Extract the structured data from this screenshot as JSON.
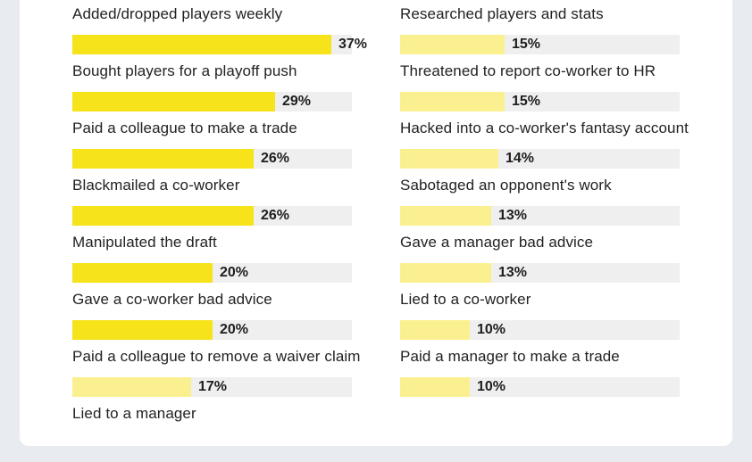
{
  "chart_data": {
    "type": "bar",
    "orientation": "horizontal",
    "value_unit": "%",
    "colors": {
      "fill_top": "#f6e31a",
      "fill_low": "#fbf08f",
      "track": "#efefef",
      "text": "#222222"
    },
    "columns": [
      {
        "items": [
          {
            "label": "Added/dropped players weekly",
            "value": 37,
            "value_label": "37%"
          },
          {
            "label": "Bought players for a playoff push",
            "value": 29,
            "value_label": "29%"
          },
          {
            "label": "Paid a colleague to make a trade",
            "value": 26,
            "value_label": "26%"
          },
          {
            "label": "Blackmailed a co-worker",
            "value": 26,
            "value_label": "26%"
          },
          {
            "label": "Manipulated the draft",
            "value": 20,
            "value_label": "20%"
          },
          {
            "label": "Gave a co-worker bad advice",
            "value": 20,
            "value_label": "20%"
          },
          {
            "label": "Paid a colleague to remove a waiver claim",
            "value": 17,
            "value_label": "17%"
          },
          {
            "label": "Lied to a manager",
            "value": null,
            "value_label": ""
          }
        ]
      },
      {
        "items": [
          {
            "label": "Researched players and stats",
            "value": 15,
            "value_label": "15%"
          },
          {
            "label": "Threatened to report co-worker to HR",
            "value": 15,
            "value_label": "15%"
          },
          {
            "label": "Hacked into a co-worker's fantasy account",
            "value": 14,
            "value_label": "14%"
          },
          {
            "label": "Sabotaged an opponent's work",
            "value": 13,
            "value_label": "13%"
          },
          {
            "label": "Gave a manager bad advice",
            "value": 13,
            "value_label": "13%"
          },
          {
            "label": "Lied to a co-worker",
            "value": 10,
            "value_label": "10%"
          },
          {
            "label": "Paid a manager to make a trade",
            "value": 10,
            "value_label": "10%"
          }
        ]
      }
    ]
  }
}
